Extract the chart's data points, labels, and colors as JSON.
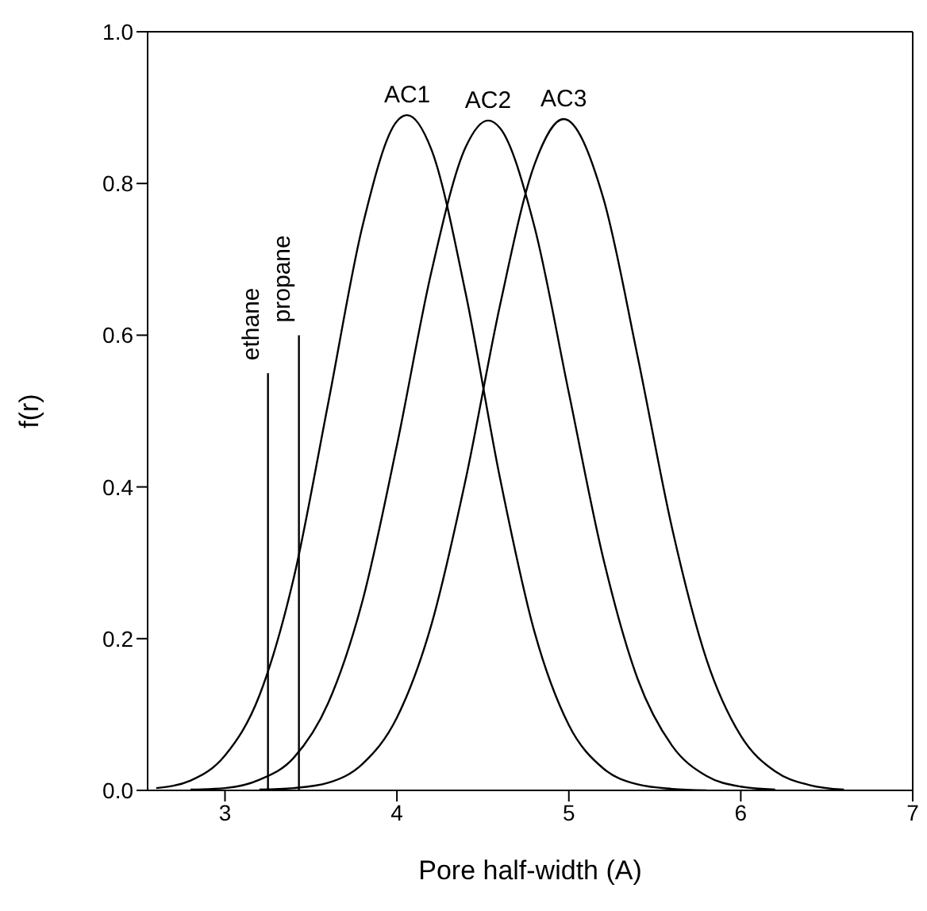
{
  "chart_data": {
    "type": "line",
    "xlabel": "Pore half-width (A)",
    "ylabel": "f(r)",
    "xlim": [
      2.55,
      7
    ],
    "xticks": [
      3,
      4,
      5,
      6,
      7
    ],
    "ylim": [
      0,
      1
    ],
    "yticks": [
      {
        "value": 0,
        "label": "0.0"
      },
      0.2,
      0.4,
      0.6,
      0.8,
      {
        "value": 1,
        "label": "1.0"
      }
    ],
    "marker": "none",
    "line_style": "solid",
    "series": [
      {
        "name": "AC1",
        "color": "#000000",
        "x": [
          2.6,
          2.8,
          3.0,
          3.2,
          3.4,
          3.6,
          3.8,
          4.0,
          4.06,
          4.2,
          4.4,
          4.6,
          4.8,
          5.0,
          5.2,
          5.4,
          5.6,
          5.8
        ],
        "values": [
          0.003,
          0.013,
          0.046,
          0.125,
          0.28,
          0.51,
          0.744,
          0.882,
          0.89,
          0.845,
          0.655,
          0.411,
          0.209,
          0.086,
          0.029,
          0.008,
          0.002,
          0
        ]
      },
      {
        "name": "AC2",
        "color": "#000000",
        "x": [
          2.8,
          3.0,
          3.2,
          3.4,
          3.6,
          3.8,
          4.0,
          4.2,
          4.4,
          4.53,
          4.6,
          4.8,
          5.0,
          5.2,
          5.4,
          5.6,
          5.8,
          6.0,
          6.2
        ],
        "values": [
          0.001,
          0.003,
          0.014,
          0.043,
          0.115,
          0.25,
          0.455,
          0.683,
          0.848,
          0.883,
          0.873,
          0.743,
          0.524,
          0.306,
          0.147,
          0.059,
          0.019,
          0.005,
          0.001
        ]
      },
      {
        "name": "AC3",
        "color": "#000000",
        "x": [
          3.2,
          3.4,
          3.6,
          3.8,
          4.0,
          4.2,
          4.4,
          4.6,
          4.8,
          4.97,
          5.2,
          5.4,
          5.6,
          5.8,
          6.0,
          6.2,
          6.4,
          6.6
        ],
        "values": [
          0.001,
          0.003,
          0.01,
          0.035,
          0.096,
          0.218,
          0.41,
          0.64,
          0.825,
          0.885,
          0.781,
          0.572,
          0.346,
          0.173,
          0.072,
          0.025,
          0.007,
          0.001
        ]
      },
      {
        "name": "ethane",
        "color": "#000000",
        "x": [
          3.25,
          3.25
        ],
        "values": [
          0,
          0.55
        ]
      },
      {
        "name": "propane",
        "color": "#000000",
        "x": [
          3.43,
          3.43
        ],
        "values": [
          0,
          0.6
        ]
      }
    ]
  }
}
